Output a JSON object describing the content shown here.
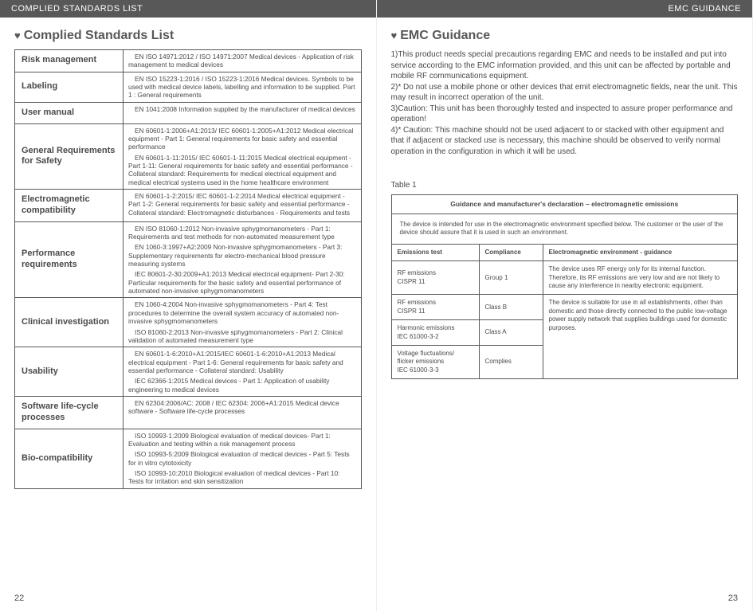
{
  "headers": {
    "left": "COMPLIED STANDARDS LIST",
    "right": "EMC GUIDANCE"
  },
  "left_page": {
    "title": "Complied Standards List",
    "rows": [
      {
        "label": "Risk management",
        "descs": [
          "EN ISO 14971:2012 / ISO 14971:2007 Medical devices - Application of risk management to medical devices"
        ]
      },
      {
        "label": "Labeling",
        "descs": [
          "EN ISO 15223-1:2016 / ISO 15223-1:2016  Medical devices. Symbols to be used with medical device labels, labelling and information to be supplied. Part 1 : General requirements"
        ]
      },
      {
        "label": "User manual",
        "descs": [
          "EN 1041:2008 Information supplied by the manufacturer of medical devices"
        ]
      },
      {
        "label": "General Requirements for Safety",
        "descs": [
          "EN 60601-1:2006+A1:2013/ IEC 60601-1:2005+A1:2012 Medical electrical equipment - Part 1: General requirements for basic safety and essential performance",
          "EN 60601-1-11:2015/ IEC 60601-1-11:2015 Medical electrical equipment - Part 1-11: General requirements for basic safety and essential performance - Collateral standard: Requirements for medical electrical equipment and medical electrical systems used in the home healthcare environment"
        ]
      },
      {
        "label": "Electromagnetic compatibility",
        "descs": [
          "EN 60601-1-2:2015/ IEC 60601-1-2:2014 Medical electrical equipment - Part 1-2: General requirements for basic safety and essential performance - Collateral standard: Electromagnetic disturbances - Requirements and tests"
        ]
      },
      {
        "label": "Performance requirements",
        "descs": [
          "EN ISO 81060-1:2012 Non-invasive sphygmomanometers - Part 1: Requirements and test methods for non-automated measurement type",
          "EN 1060-3:1997+A2:2009 Non-invasive sphygmomanometers - Part 3: Supplementary requirements for electro-mechanical blood pressure measuring systems",
          "IEC 80601-2-30:2009+A1:2013 Medical electrical equipment- Part 2-30: Particular requirements for the basic safety and essential performance of automated non-invasive sphygmomanometers"
        ]
      },
      {
        "label": "Clinical investigation",
        "descs": [
          "EN 1060-4:2004 Non-invasive sphygmomanometers - Part 4: Test procedures to determine the overall system accuracy of automated non-invasive sphygmomanometers",
          "ISO 81060-2:2013  Non-invasive sphygmomanometers - Part 2: Clinical validation of automated measurement type"
        ]
      },
      {
        "label": "Usability",
        "descs": [
          "EN 60601-1-6:2010+A1:2015/IEC 60601-1-6:2010+A1:2013 Medical electrical equipment - Part 1-6: General requirements for basic safety and essential performance - Collateral standard: Usability",
          "IEC 62366-1:2015 Medical devices - Part 1: Application of usability engineering to medical devices"
        ]
      },
      {
        "label": "Software life-cycle processes",
        "descs": [
          "EN 62304:2006/AC: 2008 / IEC 62304: 2006+A1:2015   Medical device software - Software life-cycle processes"
        ]
      },
      {
        "label": "Bio-compatibility",
        "descs": [
          "ISO 10993-1:2009 Biological evaluation of medical devices- Part 1: Evaluation and testing within a risk management process",
          "ISO 10993-5:2009 Biological evaluation of medical devices - Part 5: Tests for in vitro cytotoxicity",
          "ISO 10993-10:2010 Biological evaluation of medical devices - Part 10: Tests for irritation and skin sensitization"
        ]
      }
    ],
    "page_num": "22"
  },
  "right_page": {
    "title": "EMC Guidance",
    "paragraphs": [
      "1)This product needs special precautions regarding EMC and needs to be installed and put into service according to the EMC information provided, and this unit can be affected by portable and mobile RF communications equipment.",
      "2)* Do not use a mobile phone or other devices that emit electromagnetic fields, near the unit. This may result in incorrect operation of the unit.",
      "3)Caution: This unit has been thoroughly tested and inspected to assure proper performance and operation!",
      "4)* Caution: This machine should not be used adjacent to or stacked with other equipment and that if adjacent or stacked use is necessary, this machine should be observed to verify normal operation in the configuration in which it will be used."
    ],
    "table_label": "Table 1",
    "emc_table": {
      "caption": "Guidance and manufacturer's declaration – electromagnetic emissions",
      "intro": "The device is intended for use in the electromagnetic environment specified below. The customer or the user of the device should assure that it is used in such an environment.",
      "headers": {
        "c1": "Emissions test",
        "c2": "Compliance",
        "c3": "Electromagnetic environment - guidance"
      },
      "rows": [
        {
          "test": "RF emissions\nCISPR 11",
          "compliance": "Group 1",
          "env": "The device uses RF energy only for its internal function. Therefore, its RF emissions are very low and are not likely to cause any interference in nearby electronic equipment."
        },
        {
          "test": "RF emissions\nCISPR 11",
          "compliance": "Class B",
          "env": "The device is suitable for use in all establishments, other than domestic and those directly connected to the public low-voltage power supply network that supplies buildings used for domestic purposes."
        },
        {
          "test": "Harmonic emissions\nIEC 61000-3-2",
          "compliance": "Class A",
          "env": ""
        },
        {
          "test": "Voltage fluctuations/\nflicker emissions\nIEC 61000-3-3",
          "compliance": "Complies",
          "env": ""
        }
      ]
    },
    "page_num": "23"
  }
}
